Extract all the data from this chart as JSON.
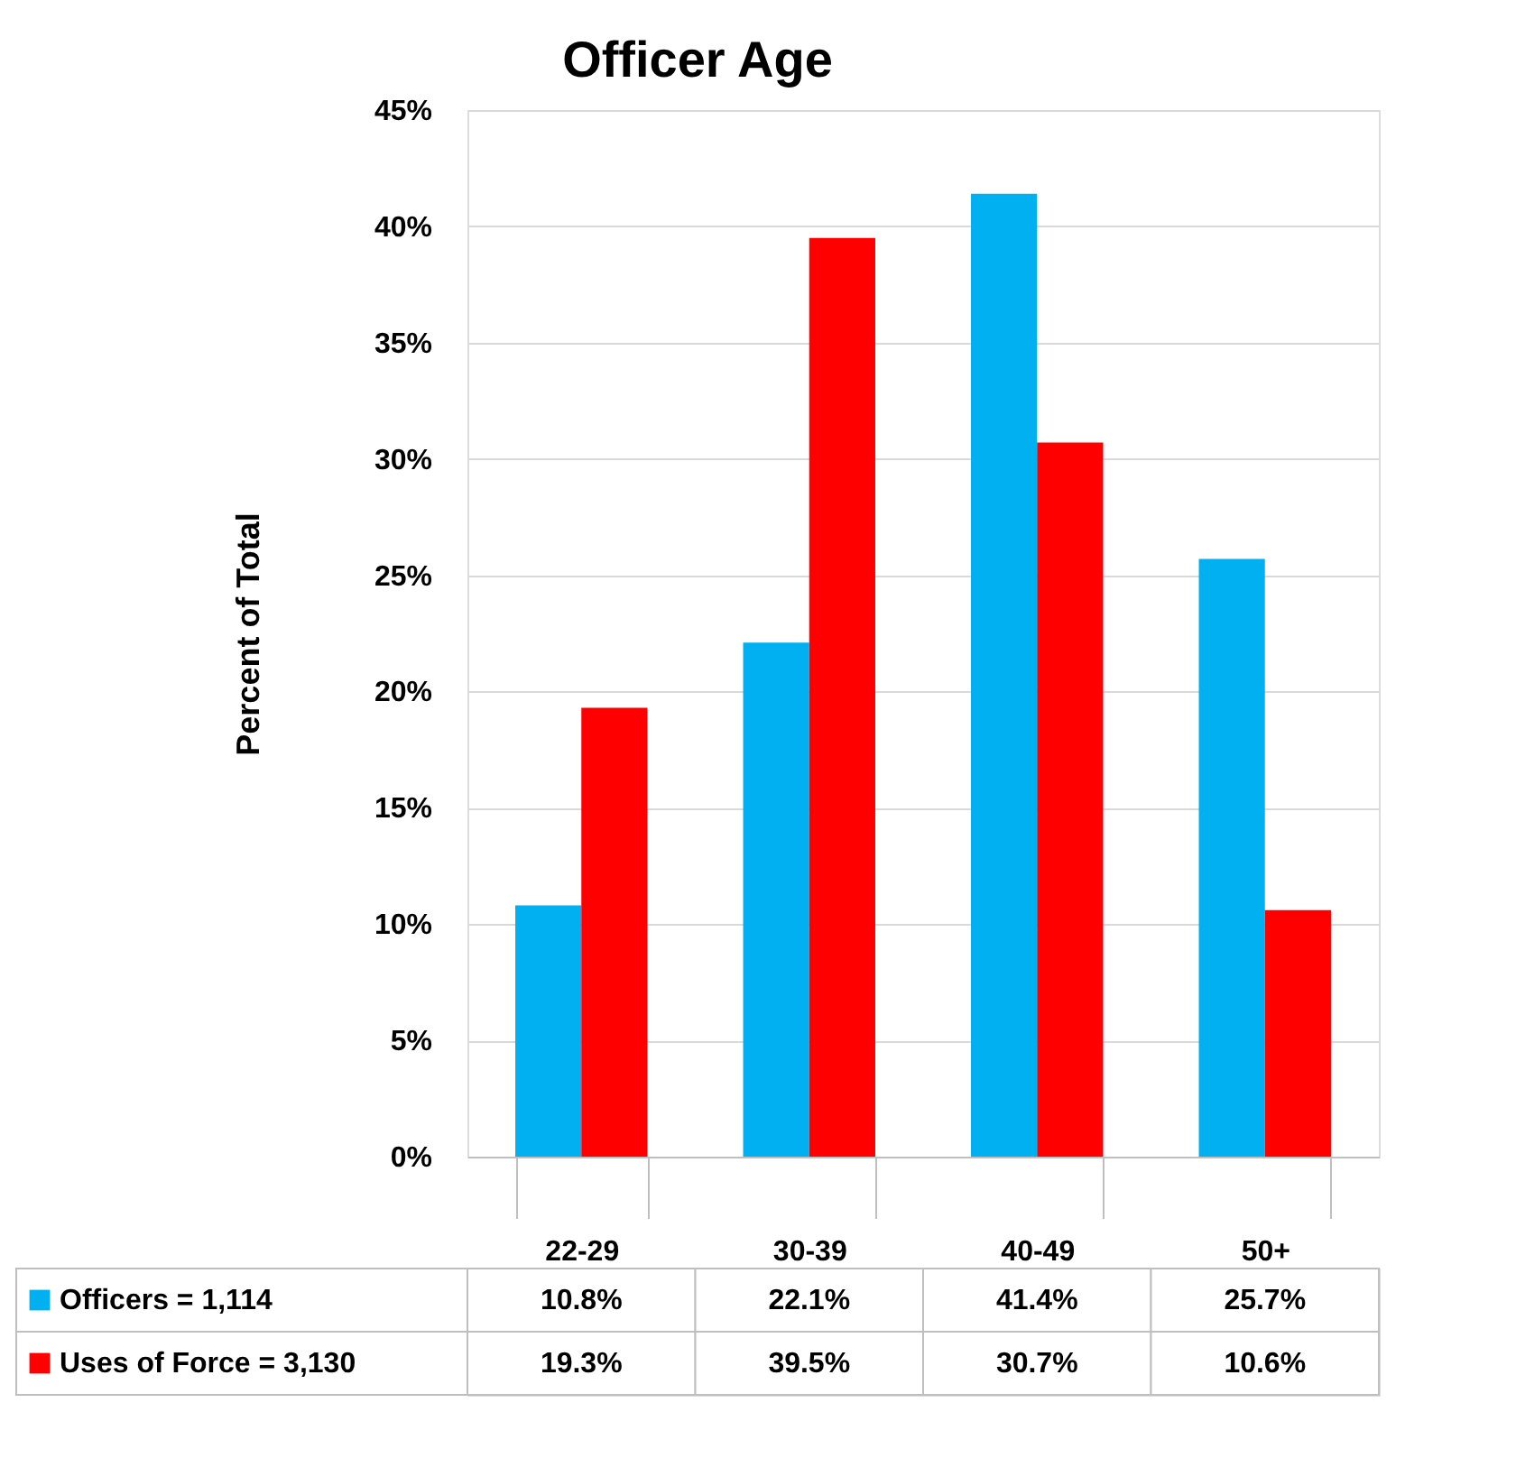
{
  "chart_data": {
    "type": "bar",
    "title": "Officer Age",
    "ylabel": "Percent of Total",
    "categories": [
      "22-29",
      "30-39",
      "40-49",
      "50+"
    ],
    "series": [
      {
        "name": "Officers = 1,114",
        "color": "#00b0f0",
        "values": [
          10.8,
          22.1,
          41.4,
          25.7
        ],
        "value_labels": [
          "10.8%",
          "22.1%",
          "41.4%",
          "25.7%"
        ]
      },
      {
        "name": "Uses of Force = 3,130",
        "color": "#ff0000",
        "values": [
          19.3,
          39.5,
          30.7,
          10.6
        ],
        "value_labels": [
          "19.3%",
          "39.5%",
          "30.7%",
          "10.6%"
        ]
      }
    ],
    "ylim": [
      0,
      45
    ],
    "yticks": [
      {
        "value": 0,
        "label": "0%"
      },
      {
        "value": 5,
        "label": "5%"
      },
      {
        "value": 10,
        "label": "10%"
      },
      {
        "value": 15,
        "label": "15%"
      },
      {
        "value": 20,
        "label": "20%"
      },
      {
        "value": 25,
        "label": "25%"
      },
      {
        "value": 30,
        "label": "30%"
      },
      {
        "value": 35,
        "label": "35%"
      },
      {
        "value": 40,
        "label": "40%"
      },
      {
        "value": 45,
        "label": "45%"
      }
    ],
    "grid": "y",
    "legend": "bottom left"
  }
}
